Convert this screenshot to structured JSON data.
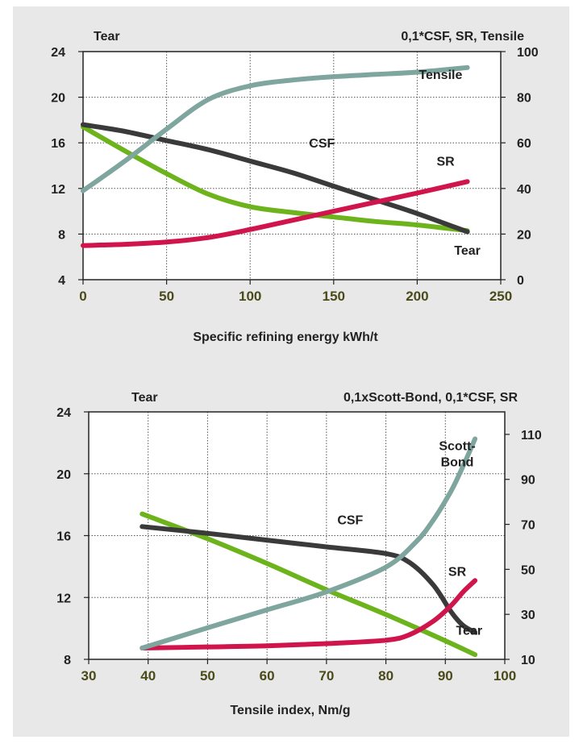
{
  "colors": {
    "green": "#6cb31c",
    "dark": "#3a3a3a",
    "gray_green": "#7fa59f",
    "red": "#d0154c",
    "tick_olive": "#4a4a1a",
    "panel_bg": "#e8e8e8"
  },
  "chart_data": [
    {
      "type": "line",
      "left_axis_title": "Tear",
      "right_axis_title": "0,1*CSF, SR, Tensile",
      "xlabel": "Specific refining energy kWh/t",
      "xlim": [
        0,
        250
      ],
      "ylim_left": [
        4,
        24
      ],
      "ylim_right": [
        0,
        100
      ],
      "x_ticks": [
        "0",
        "50",
        "100",
        "150",
        "200",
        "250"
      ],
      "y_ticks_left": [
        "4",
        "8",
        "12",
        "16",
        "20",
        "24"
      ],
      "y_ticks_right": [
        "0",
        "20",
        "40",
        "60",
        "80",
        "100"
      ],
      "grid": true,
      "series": [
        {
          "name": "Tear",
          "axis": "left",
          "color_key": "green",
          "label_x": 230,
          "label_y": 6.2,
          "x": [
            0,
            25,
            50,
            75,
            100,
            125,
            150,
            175,
            200,
            230
          ],
          "y": [
            17.4,
            15.3,
            13.3,
            11.5,
            10.4,
            9.9,
            9.5,
            9.1,
            8.8,
            8.3
          ]
        },
        {
          "name": "CSF",
          "axis": "right",
          "color_key": "dark",
          "label_x": 143,
          "label_y": 58,
          "x": [
            0,
            25,
            50,
            75,
            100,
            125,
            150,
            175,
            200,
            230
          ],
          "y": [
            68,
            65,
            61,
            57,
            52,
            47,
            41,
            35,
            29,
            21
          ]
        },
        {
          "name": "SR",
          "axis": "right",
          "color_key": "red",
          "label_x": 217,
          "label_y": 50,
          "x": [
            0,
            25,
            50,
            75,
            100,
            125,
            150,
            175,
            200,
            230
          ],
          "y": [
            15,
            15.5,
            16.5,
            18.5,
            22,
            26,
            30,
            34,
            38,
            43
          ]
        },
        {
          "name": "Tensile",
          "axis": "right",
          "color_key": "gray_green",
          "label_x": 214,
          "label_y": 88,
          "x": [
            0,
            25,
            50,
            75,
            100,
            125,
            150,
            175,
            200,
            230
          ],
          "y": [
            39,
            52,
            66,
            79,
            85,
            87.5,
            89,
            90,
            91,
            93
          ]
        }
      ]
    },
    {
      "type": "line",
      "left_axis_title": "Tear",
      "right_axis_title": "0,1xScott-Bond, 0,1*CSF, SR",
      "xlabel": "Tensile index, Nm/g",
      "xlim": [
        30,
        100
      ],
      "ylim_left": [
        8,
        24
      ],
      "ylim_right": [
        10,
        120
      ],
      "x_ticks": [
        "30",
        "40",
        "50",
        "60",
        "70",
        "80",
        "90",
        "100"
      ],
      "y_ticks_left": [
        "8",
        "12",
        "16",
        "20",
        "24"
      ],
      "y_ticks_right": [
        "10",
        "30",
        "50",
        "70",
        "90",
        "110"
      ],
      "grid": true,
      "series": [
        {
          "name": "Tear",
          "axis": "left",
          "color_key": "green",
          "label_x": 94,
          "label_y": 9.6,
          "x": [
            39,
            50,
            60,
            70,
            80,
            90,
            95
          ],
          "y": [
            17.4,
            15.8,
            14.2,
            12.5,
            10.9,
            9.2,
            8.3
          ]
        },
        {
          "name": "CSF",
          "axis": "right",
          "color_key": "dark",
          "label_x": 74,
          "label_y": 70,
          "x": [
            39,
            50,
            60,
            70,
            80,
            84,
            88,
            91,
            93,
            95
          ],
          "y": [
            69,
            66,
            63,
            60,
            57,
            53,
            43,
            31,
            25,
            22
          ]
        },
        {
          "name": "SR",
          "axis": "right",
          "color_key": "red",
          "label_x": 92,
          "label_y": 47,
          "x": [
            39,
            50,
            60,
            70,
            80,
            84,
            88,
            91,
            93,
            95
          ],
          "y": [
            15,
            15.5,
            16,
            17,
            18.5,
            21,
            27,
            34,
            40,
            45
          ]
        },
        {
          "name": "Scott-Bond",
          "axis": "right",
          "color_key": "gray_green",
          "label_x": 92,
          "label_y": 103,
          "x": [
            39,
            50,
            60,
            70,
            80,
            85,
            88,
            91,
            93,
            95
          ],
          "y": [
            15,
            24,
            32,
            40,
            51,
            62,
            72,
            85,
            96,
            108
          ]
        }
      ]
    }
  ]
}
